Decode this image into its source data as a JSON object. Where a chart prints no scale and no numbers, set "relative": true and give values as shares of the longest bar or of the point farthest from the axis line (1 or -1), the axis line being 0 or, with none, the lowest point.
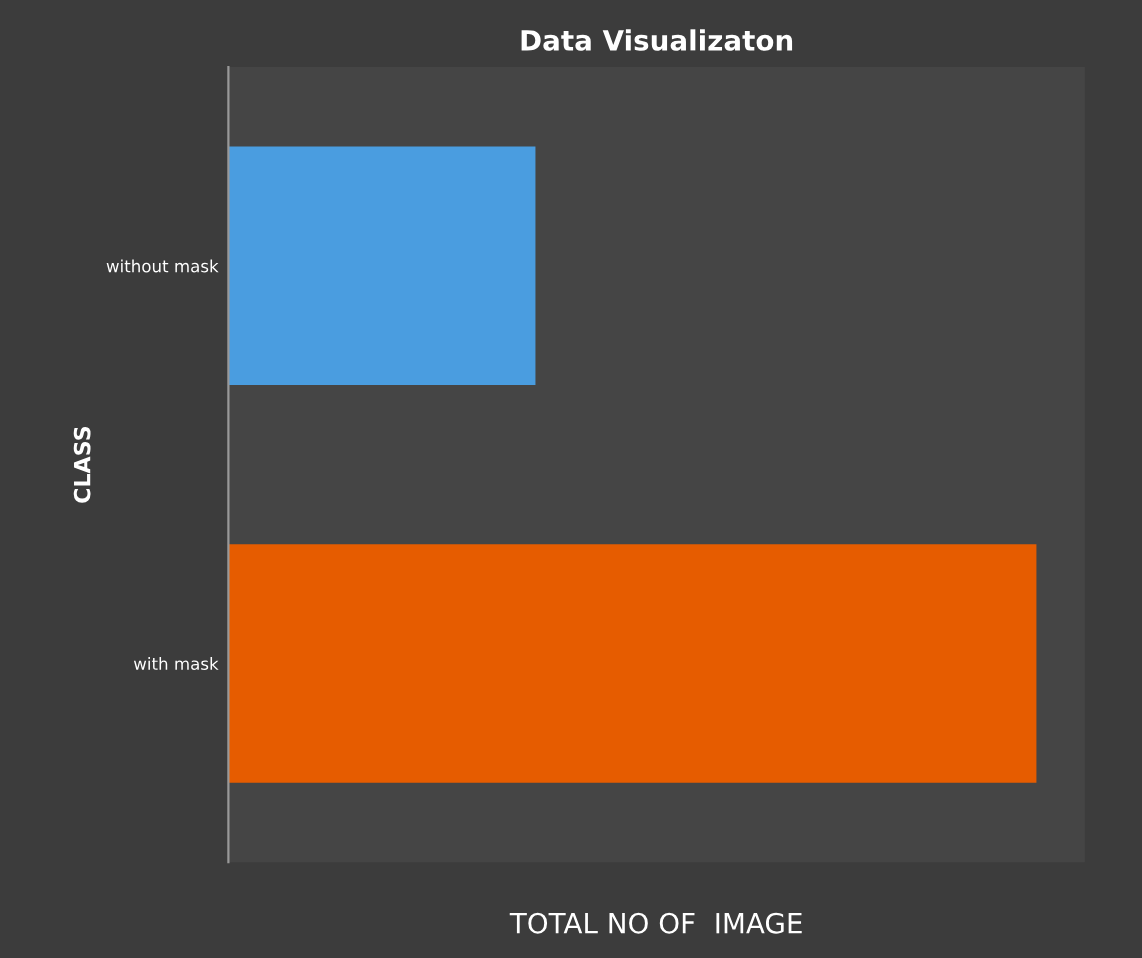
{
  "chart_data": {
    "type": "bar",
    "orientation": "horizontal",
    "relative": true,
    "title": "Data Visualizaton",
    "xlabel": "TOTAL NO OF  IMAGE",
    "ylabel": "CLASS",
    "categories": [
      "without mask",
      "with mask"
    ],
    "values": [
      0.38,
      1
    ],
    "colors": [
      "#4a9de0",
      "#e65c00"
    ],
    "grid": false,
    "legend": false
  }
}
